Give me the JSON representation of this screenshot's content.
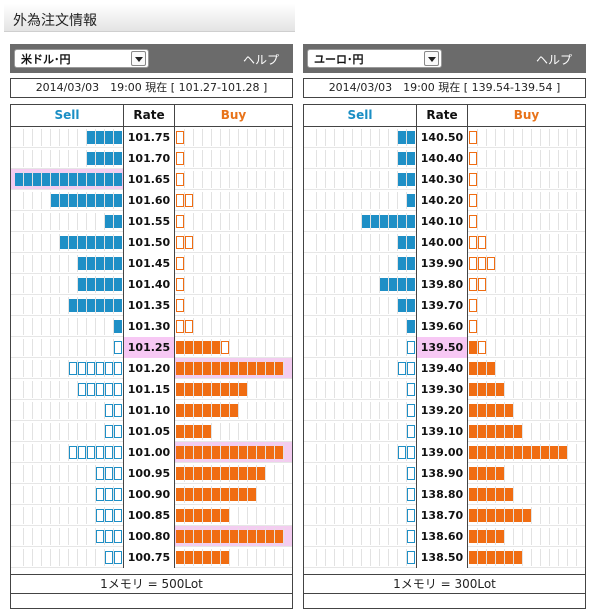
{
  "page_title": "外為注文情報",
  "panels": [
    {
      "pair": "米ドル･円",
      "help": "ヘルプ",
      "status": "2014/03/03　19:00 現在 [ 101.27-101.28 ]",
      "headers": {
        "sell": "Sell",
        "rate": "Rate",
        "buy": "Buy"
      },
      "current_rate": "101.25",
      "footer": "1メモリ = 500Lot",
      "rows": [
        {
          "rate": "101.75",
          "sell": 4,
          "sell_style": "filled",
          "buy": 1,
          "buy_style": "outline"
        },
        {
          "rate": "101.70",
          "sell": 4,
          "sell_style": "filled",
          "buy": 1,
          "buy_style": "outline"
        },
        {
          "rate": "101.65",
          "sell": 12,
          "sell_style": "filled",
          "buy": 1,
          "buy_style": "outline",
          "sell_highlight": true
        },
        {
          "rate": "101.60",
          "sell": 8,
          "sell_style": "filled",
          "buy": 2,
          "buy_style": "outline"
        },
        {
          "rate": "101.55",
          "sell": 2,
          "sell_style": "filled",
          "buy": 1,
          "buy_style": "outline"
        },
        {
          "rate": "101.50",
          "sell": 7,
          "sell_style": "filled",
          "buy": 2,
          "buy_style": "outline"
        },
        {
          "rate": "101.45",
          "sell": 5,
          "sell_style": "filled",
          "buy": 1,
          "buy_style": "outline"
        },
        {
          "rate": "101.40",
          "sell": 5,
          "sell_style": "filled",
          "buy": 1,
          "buy_style": "outline"
        },
        {
          "rate": "101.35",
          "sell": 6,
          "sell_style": "filled",
          "buy": 1,
          "buy_style": "outline"
        },
        {
          "rate": "101.30",
          "sell": 1,
          "sell_style": "filled",
          "buy": 2,
          "buy_style": "outline"
        },
        {
          "rate": "101.25",
          "sell": 1,
          "sell_style": "outline",
          "buy": 5,
          "buy_style": "filled",
          "buy_outline_extra": 1
        },
        {
          "rate": "101.20",
          "sell": 6,
          "sell_style": "outline",
          "buy": 12,
          "buy_style": "filled",
          "buy_highlight": true
        },
        {
          "rate": "101.15",
          "sell": 5,
          "sell_style": "outline",
          "buy": 8,
          "buy_style": "filled"
        },
        {
          "rate": "101.10",
          "sell": 2,
          "sell_style": "outline",
          "buy": 7,
          "buy_style": "filled"
        },
        {
          "rate": "101.05",
          "sell": 2,
          "sell_style": "outline",
          "buy": 4,
          "buy_style": "filled"
        },
        {
          "rate": "101.00",
          "sell": 6,
          "sell_style": "outline",
          "buy": 12,
          "buy_style": "filled",
          "buy_highlight": true
        },
        {
          "rate": "100.95",
          "sell": 3,
          "sell_style": "outline",
          "buy": 10,
          "buy_style": "filled"
        },
        {
          "rate": "100.90",
          "sell": 3,
          "sell_style": "outline",
          "buy": 9,
          "buy_style": "filled"
        },
        {
          "rate": "100.85",
          "sell": 3,
          "sell_style": "outline",
          "buy": 6,
          "buy_style": "filled"
        },
        {
          "rate": "100.80",
          "sell": 3,
          "sell_style": "outline",
          "buy": 12,
          "buy_style": "filled",
          "buy_highlight": true
        },
        {
          "rate": "100.75",
          "sell": 2,
          "sell_style": "outline",
          "buy": 6,
          "buy_style": "filled"
        }
      ]
    },
    {
      "pair": "ユーロ･円",
      "help": "ヘルプ",
      "status": "2014/03/03　19:00 現在 [ 139.54-139.54 ]",
      "headers": {
        "sell": "Sell",
        "rate": "Rate",
        "buy": "Buy"
      },
      "current_rate": "139.50",
      "footer": "1メモリ = 300Lot",
      "rows": [
        {
          "rate": "140.50",
          "sell": 2,
          "sell_style": "filled",
          "buy": 1,
          "buy_style": "outline"
        },
        {
          "rate": "140.40",
          "sell": 2,
          "sell_style": "filled",
          "buy": 1,
          "buy_style": "outline"
        },
        {
          "rate": "140.30",
          "sell": 2,
          "sell_style": "filled",
          "buy": 1,
          "buy_style": "outline"
        },
        {
          "rate": "140.20",
          "sell": 1,
          "sell_style": "filled",
          "buy": 1,
          "buy_style": "outline"
        },
        {
          "rate": "140.10",
          "sell": 6,
          "sell_style": "filled",
          "buy": 1,
          "buy_style": "outline"
        },
        {
          "rate": "140.00",
          "sell": 2,
          "sell_style": "filled",
          "buy": 2,
          "buy_style": "outline"
        },
        {
          "rate": "139.90",
          "sell": 2,
          "sell_style": "filled",
          "buy": 3,
          "buy_style": "outline"
        },
        {
          "rate": "139.80",
          "sell": 4,
          "sell_style": "filled",
          "buy": 2,
          "buy_style": "outline"
        },
        {
          "rate": "139.70",
          "sell": 2,
          "sell_style": "filled",
          "buy": 1,
          "buy_style": "outline"
        },
        {
          "rate": "139.60",
          "sell": 1,
          "sell_style": "filled",
          "buy": 1,
          "buy_style": "outline"
        },
        {
          "rate": "139.50",
          "sell": 1,
          "sell_style": "outline",
          "buy": 1,
          "buy_style": "filled",
          "buy_outline_extra": 1
        },
        {
          "rate": "139.40",
          "sell": 2,
          "sell_style": "outline",
          "buy": 3,
          "buy_style": "filled"
        },
        {
          "rate": "139.30",
          "sell": 1,
          "sell_style": "outline",
          "buy": 4,
          "buy_style": "filled"
        },
        {
          "rate": "139.20",
          "sell": 1,
          "sell_style": "outline",
          "buy": 5,
          "buy_style": "filled"
        },
        {
          "rate": "139.10",
          "sell": 1,
          "sell_style": "outline",
          "buy": 6,
          "buy_style": "filled"
        },
        {
          "rate": "139.00",
          "sell": 2,
          "sell_style": "outline",
          "buy": 11,
          "buy_style": "filled"
        },
        {
          "rate": "138.90",
          "sell": 1,
          "sell_style": "outline",
          "buy": 4,
          "buy_style": "filled"
        },
        {
          "rate": "138.80",
          "sell": 1,
          "sell_style": "outline",
          "buy": 5,
          "buy_style": "filled"
        },
        {
          "rate": "138.70",
          "sell": 1,
          "sell_style": "outline",
          "buy": 7,
          "buy_style": "filled"
        },
        {
          "rate": "138.60",
          "sell": 1,
          "sell_style": "outline",
          "buy": 4,
          "buy_style": "filled"
        },
        {
          "rate": "138.50",
          "sell": 1,
          "sell_style": "outline",
          "buy": 6,
          "buy_style": "filled"
        }
      ]
    }
  ]
}
